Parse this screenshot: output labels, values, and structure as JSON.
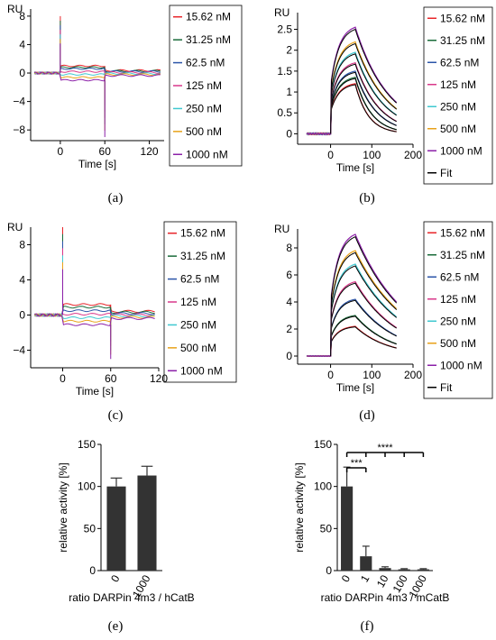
{
  "figure": {
    "captions": [
      "(a)",
      "(b)",
      "(c)",
      "(d)",
      "(e)",
      "(f)"
    ]
  },
  "legend": {
    "entries": [
      "15.62 nM",
      "31.25 nM",
      "62.5 nM",
      "125 nM",
      "250 nM",
      "500 nM",
      "1000 nM"
    ],
    "fit_label": "Fit",
    "colors": [
      "#e8252a",
      "#1a6b3a",
      "#2b54a8",
      "#d9388a",
      "#3fc8d0",
      "#e8a21a",
      "#8b1fa8"
    ],
    "fit_color": "#000000"
  },
  "chart_data": [
    {
      "panel": "a",
      "type": "line",
      "title": "",
      "xlabel": "Time [s]",
      "ylabel": "RU",
      "xlim": [
        -40,
        140
      ],
      "ylim": [
        -9.5,
        9
      ],
      "xticks": [
        0,
        60,
        120
      ],
      "yticks": [
        -8,
        -4,
        0,
        4,
        8
      ],
      "ytick_labels": [
        "−8",
        "−4",
        "0",
        "4",
        "8"
      ],
      "profile": "blank",
      "spike": {
        "start_up": 8,
        "end_down": -9
      },
      "series_levels": [
        1.0,
        0.8,
        0.6,
        0.2,
        -0.2,
        -0.6,
        -1.0
      ],
      "series": [
        {
          "name": "15.62 nM",
          "level": 1.0
        },
        {
          "name": "31.25 nM",
          "level": 0.8
        },
        {
          "name": "62.5 nM",
          "level": 0.6
        },
        {
          "name": "125 nM",
          "level": 0.2
        },
        {
          "name": "250 nM",
          "level": -0.2
        },
        {
          "name": "500 nM",
          "level": -0.6
        },
        {
          "name": "1000 nM",
          "level": -1.0
        }
      ]
    },
    {
      "panel": "b",
      "type": "line",
      "title": "",
      "xlabel": "Time [s]",
      "ylabel": "RU",
      "xlim": [
        -80,
        200
      ],
      "ylim": [
        -0.25,
        2.9
      ],
      "xticks": [
        0,
        100,
        200
      ],
      "yticks": [
        0,
        0.5,
        1,
        1.5,
        2,
        2.5
      ],
      "ytick_labels": [
        "0",
        "0.5",
        "1",
        "1.5",
        "2",
        "2.5"
      ],
      "profile": "binding",
      "inject_end": 60,
      "series": [
        {
          "name": "15.62 nM",
          "plateau": 1.2,
          "end": 0.0
        },
        {
          "name": "31.25 nM",
          "plateau": 1.35,
          "end": 0.1
        },
        {
          "name": "62.5 nM",
          "plateau": 1.5,
          "end": 0.2
        },
        {
          "name": "125 nM",
          "plateau": 1.7,
          "end": 0.3
        },
        {
          "name": "250 nM",
          "plateau": 1.95,
          "end": 0.45
        },
        {
          "name": "500 nM",
          "plateau": 2.2,
          "end": 0.6
        },
        {
          "name": "1000 nM",
          "plateau": 2.55,
          "end": 0.75
        }
      ]
    },
    {
      "panel": "c",
      "type": "line",
      "title": "",
      "xlabel": "Time [s]",
      "ylabel": "RU",
      "xlim": [
        -40,
        120
      ],
      "ylim": [
        -6,
        10
      ],
      "xticks": [
        0,
        60,
        120
      ],
      "yticks": [
        -4,
        0,
        4,
        8
      ],
      "ytick_labels": [
        "−4",
        "0",
        "4",
        "8"
      ],
      "profile": "blank",
      "spike": {
        "start_up": 10,
        "end_down": -5
      },
      "series": [
        {
          "name": "15.62 nM",
          "level": 1.2
        },
        {
          "name": "31.25 nM",
          "level": 0.9
        },
        {
          "name": "62.5 nM",
          "level": 0.5
        },
        {
          "name": "125 nM",
          "level": 0.1
        },
        {
          "name": "250 nM",
          "level": -0.3
        },
        {
          "name": "500 nM",
          "level": -0.7
        },
        {
          "name": "1000 nM",
          "level": -1.1
        }
      ]
    },
    {
      "panel": "d",
      "type": "line",
      "title": "",
      "xlabel": "Time [s]",
      "ylabel": "RU",
      "xlim": [
        -80,
        200
      ],
      "ylim": [
        -0.6,
        9.4
      ],
      "xticks": [
        0,
        100,
        200
      ],
      "yticks": [
        0,
        2,
        4,
        6,
        8
      ],
      "ytick_labels": [
        "0",
        "2",
        "4",
        "6",
        "8"
      ],
      "profile": "binding",
      "inject_end": 60,
      "series": [
        {
          "name": "15.62 nM",
          "plateau": 2.2,
          "end": 0.6
        },
        {
          "name": "31.25 nM",
          "plateau": 3.0,
          "end": 0.9
        },
        {
          "name": "62.5 nM",
          "plateau": 4.2,
          "end": 1.5
        },
        {
          "name": "125 nM",
          "plateau": 5.5,
          "end": 2.1
        },
        {
          "name": "250 nM",
          "plateau": 6.8,
          "end": 2.9
        },
        {
          "name": "500 nM",
          "plateau": 7.8,
          "end": 3.5
        },
        {
          "name": "1000 nM",
          "plateau": 9.0,
          "end": 4.0
        }
      ]
    },
    {
      "panel": "e",
      "type": "bar",
      "title": "",
      "xlabel": "ratio DARPin 4m3 / hCatB",
      "ylabel": "relative activity [%]",
      "ylim": [
        0,
        150
      ],
      "yticks": [
        0,
        50,
        100,
        150
      ],
      "categories": [
        "0",
        "1000"
      ],
      "values": [
        100,
        113
      ],
      "errors": [
        10,
        11
      ]
    },
    {
      "panel": "f",
      "type": "bar",
      "title": "",
      "xlabel": "ratio DARPin 4m3 / mCatB",
      "ylabel": "relative activity [%]",
      "ylim": [
        0,
        150
      ],
      "yticks": [
        0,
        50,
        100,
        150
      ],
      "categories": [
        "0",
        "1",
        "10",
        "100",
        "1000"
      ],
      "values": [
        100,
        17,
        3,
        1.5,
        1.5
      ],
      "errors": [
        23,
        12,
        1.5,
        0.8,
        0.8
      ],
      "significance": [
        {
          "label": "***",
          "from": "0",
          "to": "1"
        },
        {
          "label": "****",
          "from": "0",
          "to": "1000"
        }
      ]
    }
  ]
}
